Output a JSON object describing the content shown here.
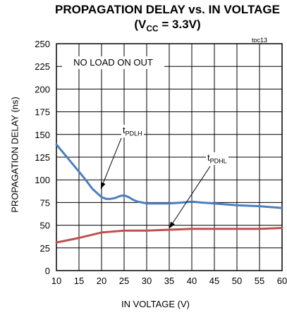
{
  "chart_data": {
    "type": "line",
    "title": "PROPAGATION DELAY vs. IN VOLTAGE",
    "subtitle_prefix": "(V",
    "subtitle_sub": "CC",
    "subtitle_suffix": " = 3.3V)",
    "tag": "toc13",
    "xlabel": "IN VOLTAGE (V)",
    "ylabel": "PROPAGATION DELAY (ns)",
    "xlim": [
      10,
      60
    ],
    "ylim": [
      0,
      250
    ],
    "xticks": [
      "10",
      "15",
      "20",
      "25",
      "30",
      "35",
      "40",
      "45",
      "50",
      "55",
      "60"
    ],
    "yticks": [
      "0",
      "25",
      "50",
      "75",
      "100",
      "125",
      "150",
      "175",
      "200",
      "225",
      "250"
    ],
    "annotation": "NO LOAD ON OUT",
    "grid": true,
    "series": [
      {
        "label_main": "t",
        "label_sub": "PDLH",
        "color": "#4a7fc1",
        "x": [
          10,
          12,
          14,
          16,
          18,
          20,
          21,
          22,
          23,
          24,
          25,
          26,
          27,
          28,
          29,
          30,
          32,
          35,
          38,
          40,
          42,
          45,
          50,
          55,
          60
        ],
        "y": [
          139,
          127,
          115,
          103,
          90,
          81,
          79,
          79,
          80,
          82,
          83,
          81,
          78,
          76,
          75,
          74,
          74,
          74,
          75,
          76,
          75,
          74,
          72,
          71,
          69
        ]
      },
      {
        "label_main": "t",
        "label_sub": "PDHL",
        "color": "#c0504d",
        "x": [
          10,
          15,
          20,
          25,
          30,
          35,
          40,
          45,
          50,
          55,
          60
        ],
        "y": [
          31,
          36,
          42,
          44,
          44,
          45,
          46,
          46,
          46,
          46,
          47
        ]
      }
    ]
  }
}
